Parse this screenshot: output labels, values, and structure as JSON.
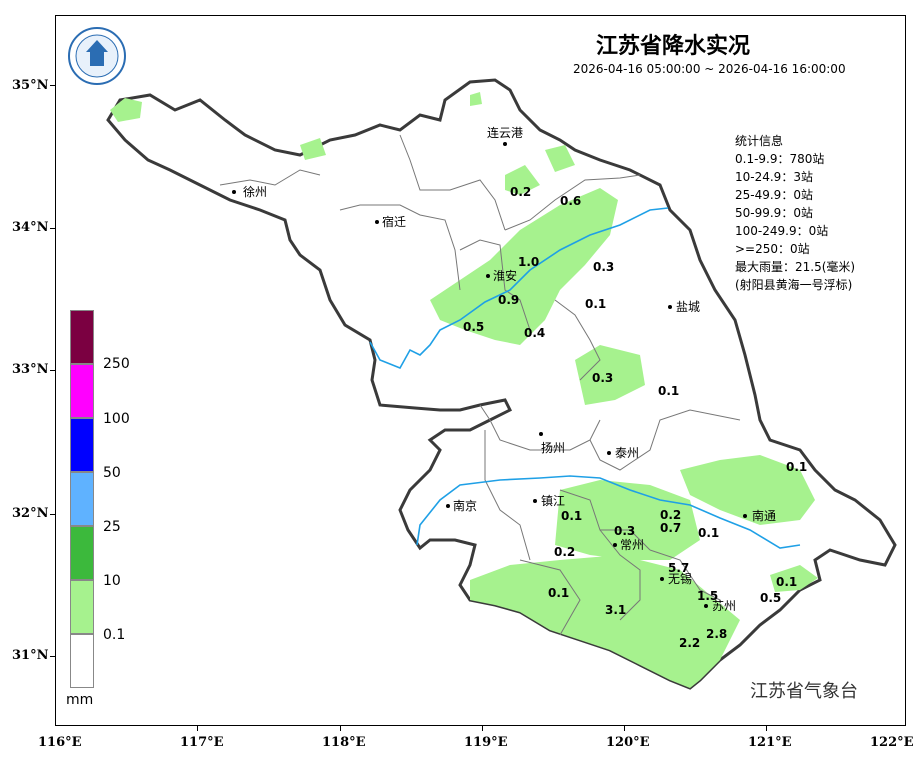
{
  "title": "江苏省降水实况",
  "subtitle": "2026-04-16 05:00:00 ~ 2026-04-16 16:00:00",
  "stats": [
    "统计信息",
    "0.1-9.9：780站",
    "10-24.9：3站",
    "25-49.9：0站",
    "50-99.9：0站",
    "100-249.9：0站",
    ">=250：0站",
    "最大雨量：21.5(毫米)",
    "(射阳县黄海一号浮标)"
  ],
  "agency": "江苏省气象台",
  "legend": {
    "unit": "mm",
    "labels": [
      "250",
      "100",
      "50",
      "25",
      "10",
      "0.1"
    ],
    "colors": [
      "#7b0041",
      "#ff00ff",
      "#0000ff",
      "#5fb2ff",
      "#3cb93c",
      "#a6f28e",
      "#ffffff"
    ]
  },
  "lat_labels": [
    "35°N",
    "34°N",
    "33°N",
    "32°N",
    "31°N"
  ],
  "lon_labels": [
    "116°E",
    "117°E",
    "118°E",
    "119°E",
    "120°E",
    "121°E",
    "122°E"
  ],
  "cities": [
    "徐州",
    "宿迁",
    "连云港",
    "淮安",
    "盐城",
    "扬州",
    "泰州",
    "南京",
    "镇江",
    "常州",
    "无锡",
    "苏州",
    "南通"
  ],
  "values": [
    "0.2",
    "0.6",
    "1.0",
    "0.3",
    "0.9",
    "0.1",
    "0.5",
    "0.4",
    "0.3",
    "0.1",
    "0.1",
    "0.1",
    "0.3",
    "0.2",
    "0.7",
    "0.1",
    "0.2",
    "5.7",
    "1.5",
    "0.1",
    "0.5",
    "0.1",
    "3.1",
    "2.8",
    "2.2"
  ],
  "colors": {
    "land_fill": "#ffffff",
    "rain_light": "#a6f28e",
    "river": "#1fa0e6",
    "border": "#3a3a3a"
  }
}
